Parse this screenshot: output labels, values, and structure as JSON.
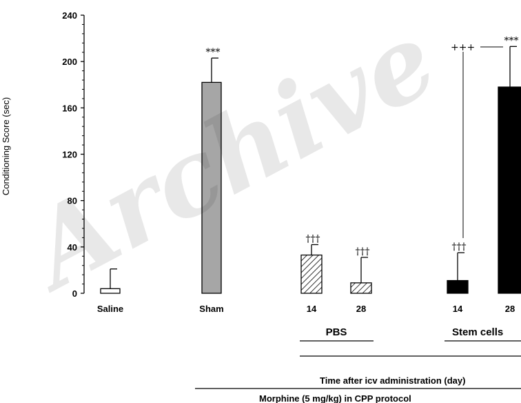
{
  "chart_data": {
    "type": "bar",
    "ylabel": "Conditioning Score (sec)",
    "ylim": [
      0,
      240
    ],
    "yticks": [
      "0",
      "40",
      "80",
      "120",
      "160",
      "200",
      "240"
    ],
    "bars": [
      {
        "label": "Saline",
        "value": 4,
        "error": 17,
        "fill": "#ffffff",
        "pattern": "none",
        "annotation": ""
      },
      {
        "label": "Sham",
        "value": 182,
        "error": 21,
        "fill": "#a6a6a6",
        "pattern": "none",
        "annotation": "***"
      },
      {
        "label": "14",
        "value": 33,
        "error": 9,
        "fill": "#ffffff",
        "pattern": "hatch",
        "annotation": "†††"
      },
      {
        "label": "28",
        "value": 9,
        "error": 22,
        "fill": "#ffffff",
        "pattern": "hatch",
        "annotation": "†††"
      },
      {
        "label": "14",
        "value": 11,
        "error": 24,
        "fill": "#000000",
        "pattern": "none",
        "annotation": "†††"
      },
      {
        "label": "28",
        "value": 178,
        "error": 35,
        "fill": "#000000",
        "pattern": "none",
        "annotation": "***"
      }
    ],
    "group_labels": {
      "pbs": "PBS",
      "stem": "Stem cells"
    },
    "comparison_annotation": "+++",
    "time_label": "Time after icv administration (day)",
    "protocol_label": "Morphine (5 mg/kg) in CPP protocol"
  },
  "watermark": "Archive"
}
